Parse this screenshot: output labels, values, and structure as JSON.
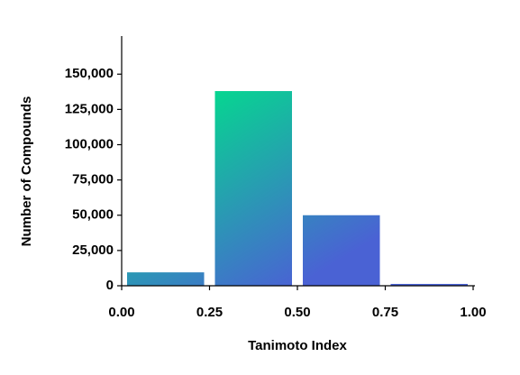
{
  "chart_data": {
    "type": "histogram",
    "xlabel": "Tanimoto Index",
    "ylabel": "Number of Compounds",
    "bins": [
      0,
      0.25,
      0.5,
      0.75,
      1.0
    ],
    "values": [
      9500,
      138000,
      50000,
      1300
    ],
    "colors": [
      "#00e08a",
      "#4a62d4"
    ],
    "xlim": [
      0,
      1
    ],
    "ylim": [
      0,
      177000
    ],
    "xticks": [
      {
        "value": 0,
        "label": "0.00"
      },
      {
        "value": 0.25,
        "label": "0.25"
      },
      {
        "value": 0.5,
        "label": "0.50"
      },
      {
        "value": 0.75,
        "label": "0.75"
      },
      {
        "value": 1.0,
        "label": "1.00"
      }
    ],
    "yticks": [
      0,
      {
        "value": 25000,
        "label": "25,000"
      },
      {
        "value": 50000,
        "label": "50,000"
      },
      {
        "value": 75000,
        "label": "75,000"
      },
      {
        "value": 100000,
        "label": "100,000"
      },
      {
        "value": 125000,
        "label": "125,000"
      },
      {
        "value": 150000,
        "label": "150,000"
      }
    ]
  }
}
